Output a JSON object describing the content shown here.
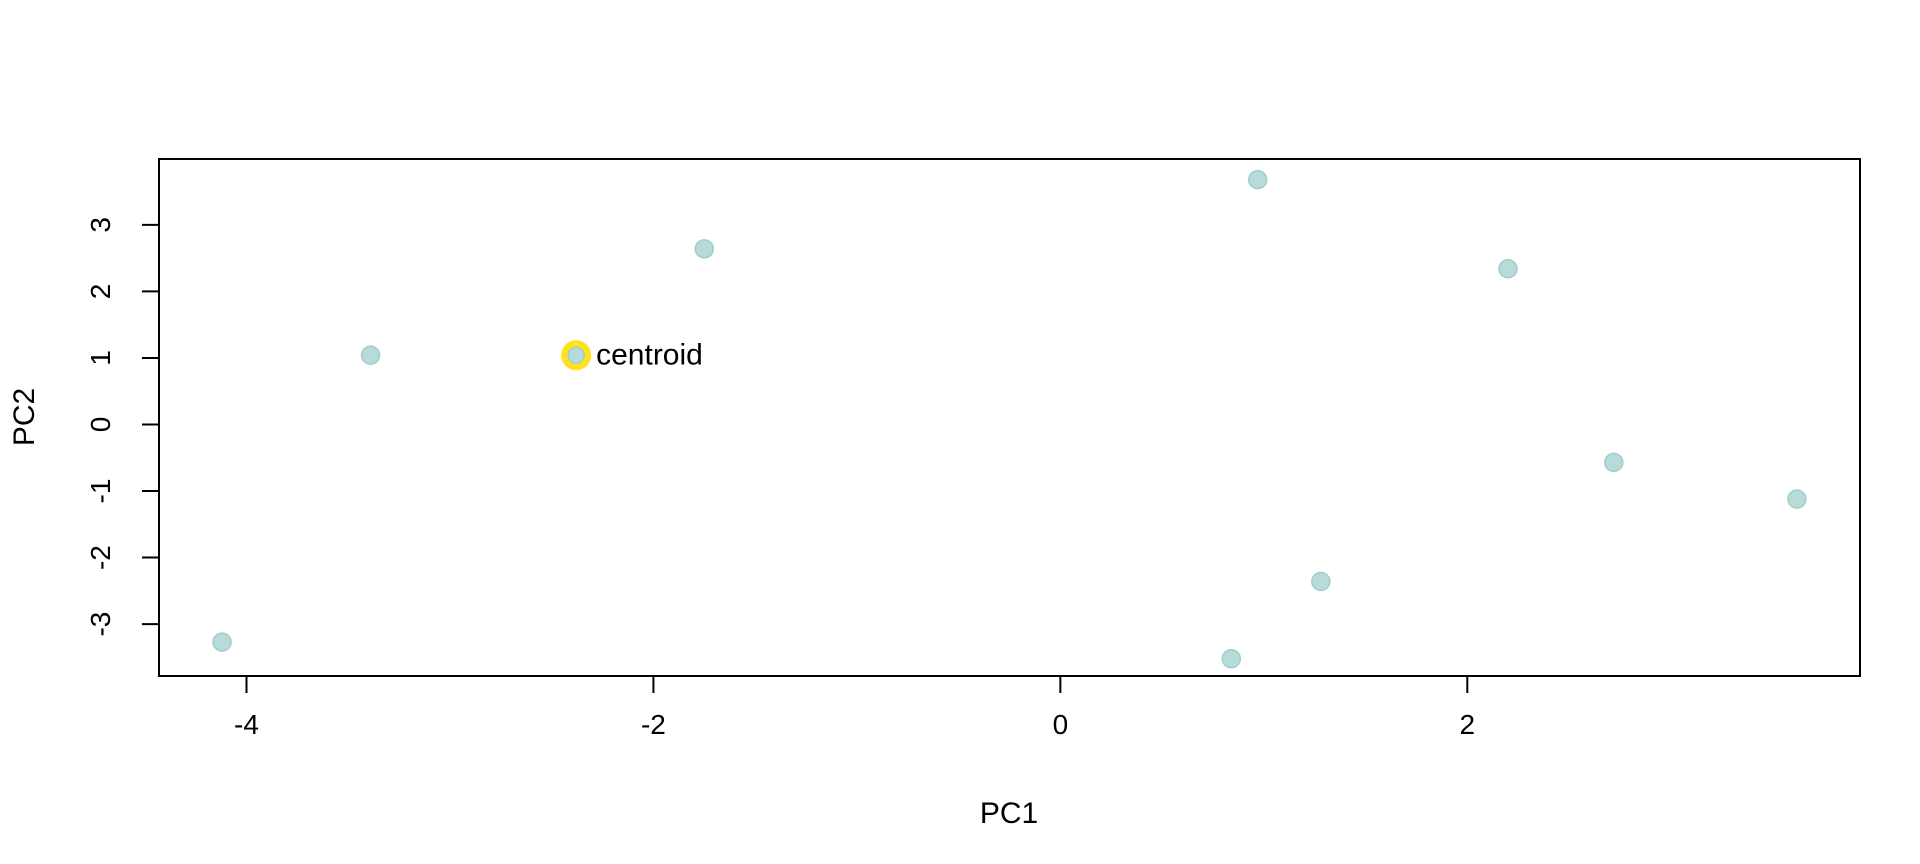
{
  "chart_data": {
    "type": "scatter",
    "title": "",
    "xlabel": "PC1",
    "ylabel": "PC2",
    "xlim": [
      -4.43,
      3.93
    ],
    "ylim": [
      -3.78,
      3.99
    ],
    "x_ticks": [
      -4,
      -2,
      0,
      2
    ],
    "y_ticks": [
      -3,
      -2,
      -1,
      0,
      1,
      2,
      3
    ],
    "grid": false,
    "point_color": "#b7dbd8",
    "point_edge_color": "#9fcecb",
    "highlight_color": "#ffe21e",
    "points": [
      {
        "x": -4.12,
        "y": -3.27
      },
      {
        "x": -3.39,
        "y": 1.04
      },
      {
        "x": -1.75,
        "y": 2.64
      },
      {
        "x": 0.97,
        "y": 3.68
      },
      {
        "x": 2.2,
        "y": 2.34
      },
      {
        "x": 2.72,
        "y": -0.57
      },
      {
        "x": 3.62,
        "y": -1.12
      },
      {
        "x": 1.28,
        "y": -2.36
      },
      {
        "x": 0.84,
        "y": -3.52
      }
    ],
    "centroid": {
      "x": -2.38,
      "y": 1.04,
      "label": "centroid"
    }
  }
}
